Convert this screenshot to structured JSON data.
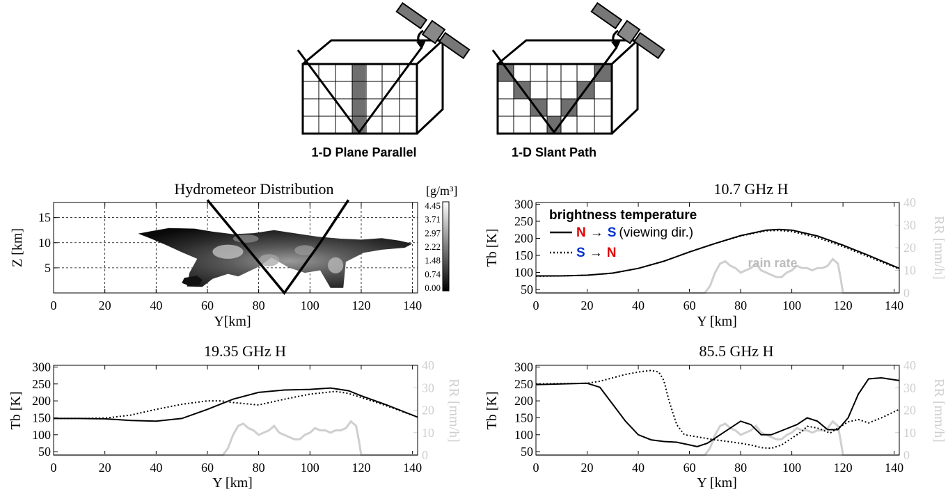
{
  "diagrams": [
    {
      "caption": "1-D Plane Parallel"
    },
    {
      "caption": "1-D Slant Path"
    }
  ],
  "chart_data": [
    {
      "type": "heatmap",
      "title": "Hydrometeor Distribution",
      "xlabel": "Y[km]",
      "ylabel": "Z [km]",
      "xlim": [
        0,
        142
      ],
      "ylim": [
        0,
        18
      ],
      "xticks": [
        "0",
        "20",
        "40",
        "60",
        "80",
        "100",
        "120",
        "140"
      ],
      "yticks": [
        "5",
        "10",
        "15"
      ],
      "grid": true,
      "colorbar": {
        "unit": "[g/m³]",
        "ticks": [
          "4.45",
          "3.71",
          "2.97",
          "2.22",
          "1.48",
          "0.74",
          "0.00"
        ]
      }
    },
    {
      "type": "line",
      "title": "10.7  GHz H",
      "xlabel": "Y [km]",
      "ylabel": "Tb [K]",
      "ylabel_right": "RR [mm/h]",
      "xlim": [
        0,
        142
      ],
      "ylim": [
        40,
        305
      ],
      "ylim_right": [
        0,
        40
      ],
      "xticks": [
        "0",
        "20",
        "40",
        "60",
        "80",
        "100",
        "120",
        "140"
      ],
      "yticks": [
        "50",
        "100",
        "150",
        "200",
        "250",
        "300"
      ],
      "yticks_right": [
        "0",
        "10",
        "20",
        "30",
        "40"
      ],
      "legend": {
        "title": "brightness temperature",
        "entries": [
          {
            "style": "solid",
            "from": "N",
            "arrow": "→",
            "to": "S",
            "note": "(viewing dir.)"
          },
          {
            "style": "dotted",
            "from": "S",
            "arrow": "→",
            "to": "N",
            "note": ""
          }
        ]
      },
      "annotation": "rain rate",
      "series": [
        {
          "style": "solid",
          "x": [
            0,
            10,
            20,
            30,
            40,
            50,
            60,
            70,
            80,
            90,
            95,
            100,
            110,
            120,
            130,
            142
          ],
          "y": [
            90,
            90,
            92,
            98,
            112,
            133,
            160,
            185,
            208,
            224,
            226,
            224,
            207,
            180,
            150,
            112
          ]
        },
        {
          "style": "dotted",
          "x": [
            0,
            10,
            20,
            30,
            40,
            50,
            60,
            70,
            80,
            90,
            95,
            100,
            110,
            120,
            130,
            142
          ],
          "y": [
            89,
            90,
            92,
            98,
            112,
            133,
            160,
            185,
            207,
            222,
            223,
            220,
            202,
            176,
            146,
            110
          ]
        }
      ]
    },
    {
      "type": "line",
      "title": "19.35 GHz H",
      "xlabel": "Y [km]",
      "ylabel": "Tb [K]",
      "ylabel_right": "RR [mm/h]",
      "xlim": [
        0,
        142
      ],
      "ylim": [
        40,
        305
      ],
      "ylim_right": [
        0,
        40
      ],
      "xticks": [
        "0",
        "20",
        "40",
        "60",
        "80",
        "100",
        "120",
        "140"
      ],
      "yticks": [
        "50",
        "100",
        "150",
        "200",
        "250",
        "300"
      ],
      "yticks_right": [
        "0",
        "10",
        "20",
        "30",
        "40"
      ],
      "series": [
        {
          "style": "solid",
          "x": [
            0,
            10,
            20,
            30,
            40,
            50,
            60,
            70,
            80,
            90,
            100,
            108,
            115,
            120,
            130,
            142
          ],
          "y": [
            148,
            148,
            147,
            142,
            140,
            148,
            175,
            205,
            225,
            232,
            234,
            238,
            230,
            215,
            188,
            152
          ]
        },
        {
          "style": "dotted",
          "x": [
            0,
            10,
            20,
            30,
            40,
            50,
            60,
            65,
            70,
            80,
            90,
            100,
            110,
            115,
            120,
            130,
            142
          ],
          "y": [
            148,
            148,
            149,
            158,
            175,
            190,
            200,
            200,
            195,
            188,
            205,
            220,
            228,
            222,
            210,
            185,
            152
          ]
        }
      ]
    },
    {
      "type": "line",
      "title": "85.5  GHz H",
      "xlabel": "Y [km]",
      "ylabel": "Tb [K]",
      "ylabel_right": "RR [mm/h]",
      "xlim": [
        0,
        142
      ],
      "ylim": [
        40,
        305
      ],
      "ylim_right": [
        0,
        40
      ],
      "xticks": [
        "0",
        "20",
        "40",
        "60",
        "80",
        "100",
        "120",
        "140"
      ],
      "yticks": [
        "50",
        "100",
        "150",
        "200",
        "250",
        "300"
      ],
      "yticks_right": [
        "0",
        "10",
        "20",
        "30",
        "40"
      ],
      "series": [
        {
          "style": "solid",
          "x": [
            0,
            10,
            20,
            25,
            30,
            35,
            40,
            45,
            50,
            55,
            60,
            63,
            67,
            72,
            76,
            80,
            84,
            88,
            92,
            97,
            102,
            106,
            110,
            114,
            118,
            122,
            126,
            130,
            135,
            142
          ],
          "y": [
            248,
            250,
            252,
            240,
            190,
            140,
            100,
            85,
            80,
            78,
            70,
            65,
            75,
            100,
            120,
            140,
            130,
            100,
            100,
            115,
            130,
            150,
            140,
            115,
            115,
            150,
            220,
            265,
            268,
            260
          ]
        },
        {
          "style": "dotted",
          "x": [
            0,
            10,
            20,
            25,
            30,
            35,
            40,
            45,
            48,
            50,
            52,
            55,
            58,
            62,
            66,
            70,
            75,
            80,
            85,
            88,
            92,
            96,
            100,
            104,
            106,
            110,
            115,
            118,
            122,
            126,
            130,
            135,
            142
          ],
          "y": [
            250,
            251,
            252,
            258,
            268,
            278,
            285,
            290,
            285,
            260,
            200,
            130,
            100,
            95,
            90,
            85,
            80,
            75,
            68,
            62,
            60,
            70,
            90,
            110,
            125,
            120,
            105,
            120,
            138,
            145,
            135,
            150,
            175
          ]
        }
      ]
    }
  ],
  "rain_rate": {
    "x": [
      0,
      66,
      68,
      70,
      72,
      74,
      76,
      78,
      80,
      82,
      84,
      86,
      88,
      90,
      92,
      94,
      96,
      98,
      100,
      102,
      104,
      106,
      108,
      110,
      112,
      114,
      116,
      118,
      119,
      120,
      142
    ],
    "y": [
      0,
      0,
      3,
      9,
      13,
      14,
      12,
      11,
      9,
      10,
      11,
      13,
      10,
      9,
      8,
      7,
      7,
      9,
      10,
      12,
      11,
      11,
      10,
      11,
      11,
      12,
      15,
      13,
      7,
      0,
      0
    ]
  },
  "colors": {
    "rain": "#cfcfcf",
    "shade": "#6f6f6f",
    "north": "#e00000",
    "south": "#0030d0",
    "text": "#000000"
  }
}
